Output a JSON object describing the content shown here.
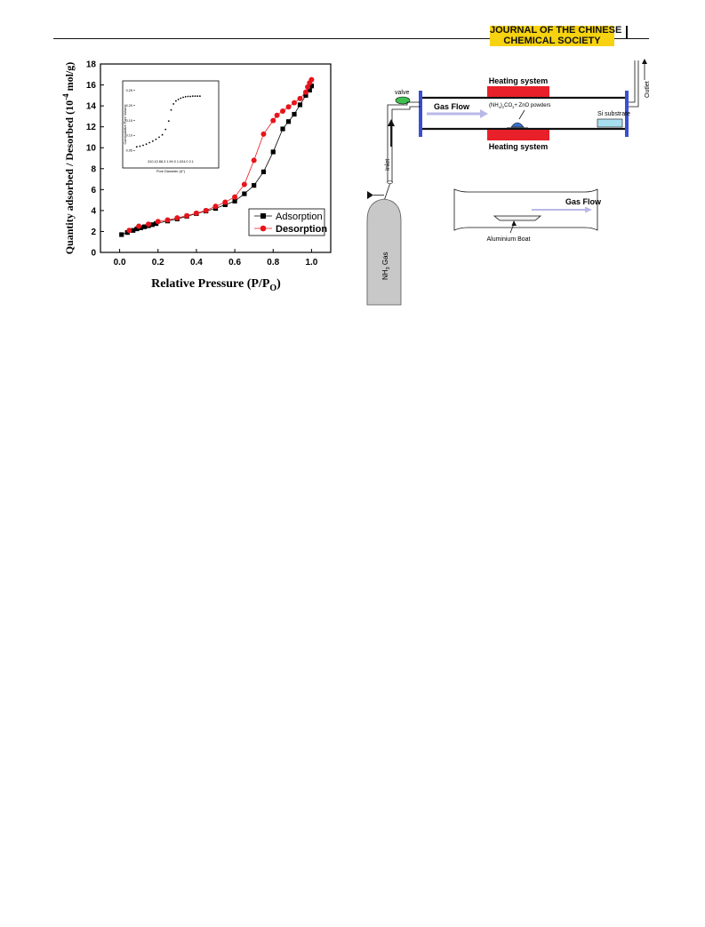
{
  "header": {
    "journal_line1": "JOURNAL OF THE CHINESE",
    "journal_line2": "CHEMICAL SOCIETY"
  },
  "chart_data": [
    {
      "type": "scatter",
      "xlabel_main": "Relative Pressure (P/P",
      "xlabel_sub": "O",
      "xlabel_close": ")",
      "ylabel": "Quantity adsorbed / Desorbed (10",
      "ylabel_sup": "-4",
      "ylabel_unit": " mol/g)",
      "xlim": [
        -0.1,
        1.1
      ],
      "ylim": [
        0,
        18
      ],
      "x_ticks": [
        "0.0",
        "0.2",
        "0.4",
        "0.6",
        "0.8",
        "1.0"
      ],
      "y_ticks": [
        "0",
        "2",
        "4",
        "6",
        "8",
        "10",
        "12",
        "14",
        "16",
        "18"
      ],
      "legend_position": "lower-right",
      "series": [
        {
          "name": "Adsorption",
          "color": "#000000",
          "marker": "square",
          "x": [
            0.01,
            0.04,
            0.07,
            0.09,
            0.11,
            0.13,
            0.15,
            0.17,
            0.19,
            0.25,
            0.3,
            0.35,
            0.4,
            0.45,
            0.5,
            0.55,
            0.6,
            0.65,
            0.7,
            0.75,
            0.8,
            0.85,
            0.88,
            0.91,
            0.94,
            0.97,
            0.99,
            1.0
          ],
          "y": [
            1.7,
            1.9,
            2.1,
            2.25,
            2.35,
            2.45,
            2.55,
            2.65,
            2.75,
            3.0,
            3.2,
            3.45,
            3.7,
            3.95,
            4.2,
            4.55,
            4.9,
            5.6,
            6.4,
            7.7,
            9.6,
            11.8,
            12.5,
            13.2,
            14.1,
            15.0,
            15.5,
            15.9
          ]
        },
        {
          "name": "Desorption",
          "color": "#e8141b",
          "marker": "circle",
          "x": [
            0.05,
            0.1,
            0.15,
            0.2,
            0.25,
            0.3,
            0.35,
            0.4,
            0.45,
            0.5,
            0.55,
            0.6,
            0.65,
            0.7,
            0.75,
            0.8,
            0.82,
            0.85,
            0.88,
            0.91,
            0.94,
            0.97,
            0.98,
            0.99,
            1.0
          ],
          "y": [
            2.1,
            2.5,
            2.7,
            2.95,
            3.1,
            3.3,
            3.5,
            3.75,
            4.0,
            4.4,
            4.8,
            5.3,
            6.5,
            8.8,
            11.3,
            12.6,
            13.1,
            13.5,
            13.9,
            14.3,
            14.7,
            15.3,
            15.8,
            16.2,
            16.5
          ]
        }
      ],
      "inset": {
        "type": "scatter",
        "xlabel": "Pore Diameter (A°)",
        "ylabel": "Cummulative Pore Volume",
        "y_ticks": [
          "0.05",
          "0.10",
          "0.15",
          "0.20",
          "0.25"
        ],
        "x_tick_text": "310.10 88.3 1.99.3 1.024.0 2.1",
        "x": [
          0.02,
          0.06,
          0.1,
          0.14,
          0.18,
          0.22,
          0.26,
          0.3,
          0.34,
          0.38,
          0.42,
          0.45,
          0.48,
          0.51,
          0.54,
          0.57,
          0.6,
          0.63,
          0.66,
          0.69,
          0.72,
          0.75,
          0.78,
          0.81
        ],
        "y": [
          0.062,
          0.064,
          0.067,
          0.071,
          0.076,
          0.081,
          0.087,
          0.094,
          0.102,
          0.12,
          0.148,
          0.185,
          0.205,
          0.215,
          0.22,
          0.224,
          0.227,
          0.229,
          0.23,
          0.23,
          0.231,
          0.231,
          0.231,
          0.231
        ]
      }
    }
  ],
  "diagram": {
    "heating_top": "Heating system",
    "heating_bottom": "Heating system",
    "valve": "valve",
    "gas_flow": "Gas Flow",
    "powders": "(NH",
    "powders_sub1": "4",
    "powders_mid": ")",
    "powders_sub2": "2",
    "powders_co": "CO",
    "powders_sub3": "3",
    "powders_end": "+ ZnO powders",
    "si_substrate": "Si substrate",
    "outlet": "Outlet",
    "inlet": "Inlet",
    "nh3_pre": "NH",
    "nh3_sub": "3",
    "nh3_post": " Gas",
    "boat_gas_flow": "Gas Flow",
    "aluminium_boat": "Aluminium Boat",
    "colors": {
      "heater": "#e8202a",
      "tube_end": "#3a4fd0",
      "valve": "#3fbf4f",
      "substrate": "#a8dff0",
      "cylinder": "#c8c8c8",
      "flow_arrow": "#b8b8e8"
    }
  }
}
